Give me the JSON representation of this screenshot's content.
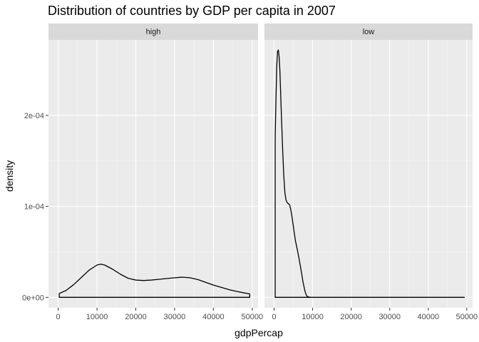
{
  "chart_data": {
    "type": "area",
    "title": "Distribution of countries by GDP per capita in 2007",
    "xlabel": "gdpPercap",
    "ylabel": "density",
    "xlim": [
      -2500,
      51500
    ],
    "ylim": [
      -1.15e-05,
      0.000283
    ],
    "x_ticks": [
      0,
      10000,
      20000,
      30000,
      40000,
      50000
    ],
    "x_tick_labels": [
      "0",
      "10000",
      "20000",
      "30000",
      "40000",
      "50000"
    ],
    "y_ticks": [
      0,
      0.0001,
      0.0002
    ],
    "y_tick_labels": [
      "0e+00",
      "1e-04",
      "2e-04"
    ],
    "grid": true,
    "panel_background": "#ebebeb",
    "strip_background": "#d9d9d9",
    "line_color": "#000000",
    "facets": [
      {
        "label": "high",
        "x": [
          277,
          2000,
          4000,
          6000,
          8000,
          10000,
          11000,
          12000,
          14000,
          16000,
          18000,
          20000,
          22000,
          24000,
          26000,
          28000,
          30000,
          32000,
          34000,
          36000,
          38000,
          40000,
          42000,
          44000,
          46000,
          48000,
          49357
        ],
        "y": [
          4.2e-06,
          7.5e-06,
          1.4e-05,
          2.2e-05,
          3e-05,
          3.55e-05,
          3.65e-05,
          3.55e-05,
          3.1e-05,
          2.55e-05,
          2.1e-05,
          1.9e-05,
          1.85e-05,
          1.9e-05,
          1.98e-05,
          2.07e-05,
          2.15e-05,
          2.22e-05,
          2.15e-05,
          1.95e-05,
          1.65e-05,
          1.35e-05,
          1.1e-05,
          8.5e-06,
          6.5e-06,
          4.8e-06,
          3.8e-06
        ]
      },
      {
        "label": "low",
        "x": [
          277,
          300,
          500,
          700,
          900,
          1100,
          1300,
          1500,
          1700,
          1900,
          2200,
          2500,
          2800,
          3100,
          3400,
          3700,
          4000,
          4300,
          4600,
          5000,
          5500,
          6000,
          6500,
          7000,
          7500,
          8000,
          8300,
          8600,
          9000,
          9500,
          10000,
          12000,
          20000,
          30000,
          40000,
          49357
        ],
        "y": [
          0.000168,
          0.00018,
          0.00022,
          0.000255,
          0.00027,
          0.000272,
          0.000265,
          0.00025,
          0.000225,
          0.0002,
          0.000165,
          0.000135,
          0.000115,
          0.000107,
          0.000104,
          0.000103,
          0.000102,
          9.7e-05,
          9e-05,
          7.8e-05,
          6.3e-05,
          5.3e-05,
          4.2e-05,
          3e-05,
          1.7e-05,
          7e-06,
          3e-06,
          1e-06,
          3e-07,
          5e-08,
          0,
          0,
          0,
          0,
          0,
          0
        ]
      }
    ]
  }
}
